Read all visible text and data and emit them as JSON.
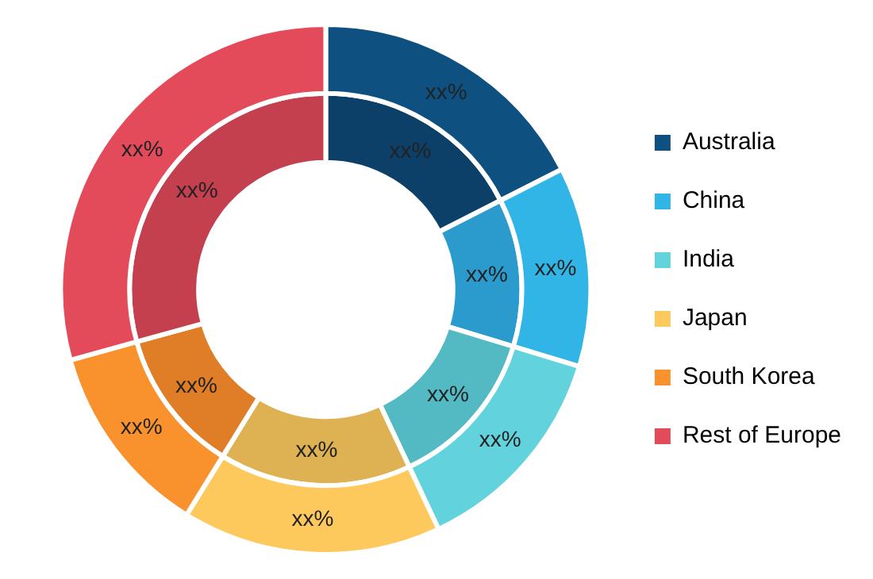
{
  "chart_data": {
    "type": "donut",
    "categories": [
      "Australia",
      "China",
      "India",
      "Japan",
      "South Korea",
      "Rest of Europe"
    ],
    "legend": "right",
    "series": [
      {
        "values": [
          17.5,
          12.2,
          13.3,
          15.8,
          11.9,
          29.3
        ],
        "colors": [
          "#0e5181",
          "#31b4e6",
          "#62d2dd",
          "#fec95c",
          "#f9922d",
          "#e44b5a"
        ],
        "value_labels": [
          "xx%",
          "xx%",
          "xx%",
          "xx%",
          "xx%",
          "xx%"
        ]
      },
      {
        "values": [
          17.5,
          12.2,
          13.3,
          15.8,
          11.9,
          29.3
        ],
        "colors": [
          "#0c4068",
          "#2a9bcc",
          "#53b9c2",
          "#deb152",
          "#e07d27",
          "#c4404f"
        ],
        "value_labels": [
          "xx%",
          "xx%",
          "xx%",
          "xx%",
          "xx%",
          "xx%"
        ]
      }
    ]
  }
}
